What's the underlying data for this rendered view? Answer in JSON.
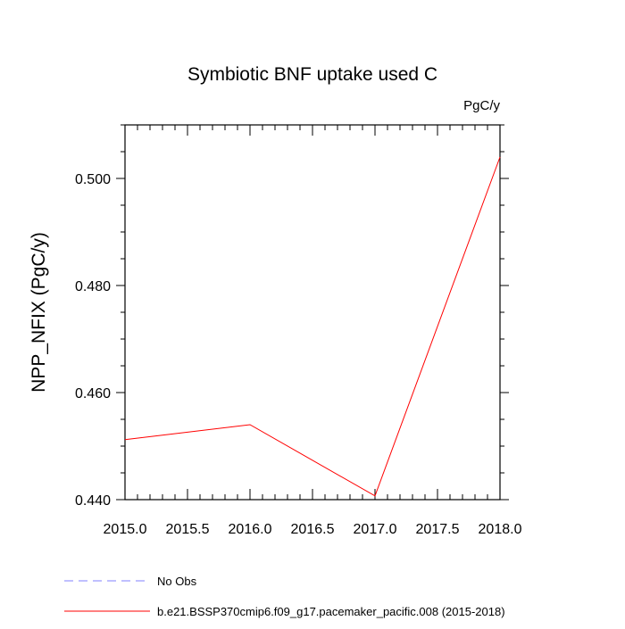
{
  "chart_data": {
    "type": "line",
    "title": "Symbiotic BNF uptake used C",
    "units_label": "PgC/y",
    "ylabel": "NPP_NFIX  (PgC/y)",
    "xlabel": "",
    "xlim": [
      2015.0,
      2018.0
    ],
    "ylim": [
      0.44,
      0.51
    ],
    "x_ticks": [
      2015.0,
      2015.5,
      2016.0,
      2016.5,
      2017.0,
      2017.5,
      2018.0
    ],
    "x_tick_labels": [
      "2015.0",
      "2015.5",
      "2016.0",
      "2016.5",
      "2017.0",
      "2017.5",
      "2018.0"
    ],
    "x_minor_ticks": [
      2015.1,
      2015.2,
      2015.3,
      2015.4,
      2015.6,
      2015.7,
      2015.8,
      2015.9,
      2016.1,
      2016.2,
      2016.3,
      2016.4,
      2016.6,
      2016.7,
      2016.8,
      2016.9,
      2017.1,
      2017.2,
      2017.3,
      2017.4,
      2017.6,
      2017.7,
      2017.8,
      2017.9
    ],
    "y_ticks": [
      0.44,
      0.46,
      0.48,
      0.5
    ],
    "y_tick_labels": [
      "0.440",
      "0.460",
      "0.480",
      "0.500"
    ],
    "y_minor_ticks": [
      0.445,
      0.45,
      0.455,
      0.465,
      0.47,
      0.475,
      0.485,
      0.49,
      0.495,
      0.505,
      0.51
    ],
    "grid": false,
    "legend_position": "bottom",
    "series": [
      {
        "name": "No Obs",
        "color": "#8080ff",
        "dashed": true,
        "x": [],
        "y": []
      },
      {
        "name": "b.e21.BSSP370cmip6.f09_g17.pacemaker_pacific.008 (2015-2018)",
        "color": "#ff0000",
        "dashed": false,
        "x": [
          2015.0,
          2016.0,
          2017.0,
          2018.0
        ],
        "y": [
          0.4512,
          0.454,
          0.4407,
          0.504
        ]
      }
    ]
  }
}
